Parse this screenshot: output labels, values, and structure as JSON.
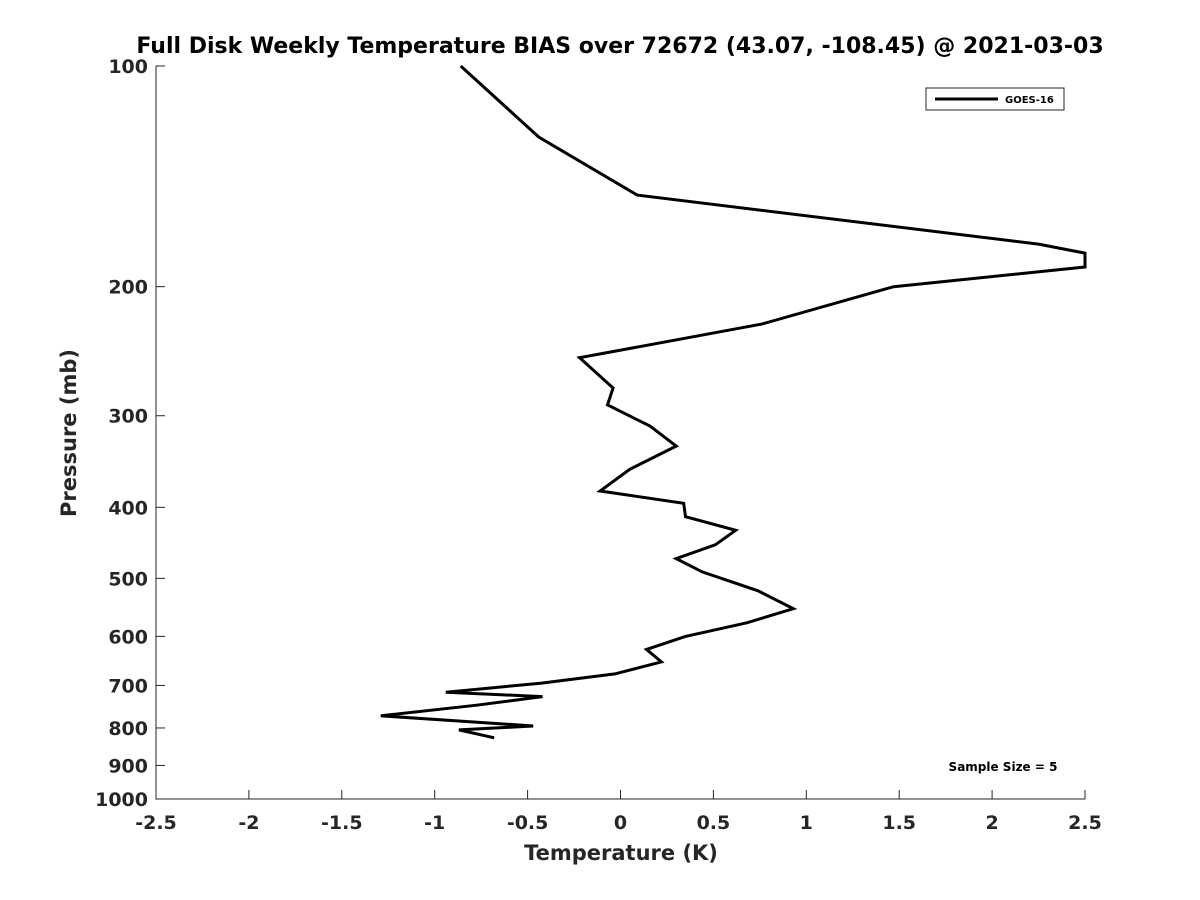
{
  "chart_data": {
    "type": "line",
    "title": "Full Disk Weekly Temperature BIAS over 72672 (43.07, -108.45) @ 2021-03-03",
    "xlabel": "Temperature (K)",
    "ylabel": "Pressure (mb)",
    "xlim": [
      -2.5,
      2.5
    ],
    "ylim": [
      1000,
      100
    ],
    "y_scale": "log",
    "y_reversed": true,
    "grid": false,
    "legend_position": "top-right",
    "x_ticks": [
      -2.5,
      -2,
      -1.5,
      -1,
      -0.5,
      0,
      0.5,
      1,
      1.5,
      2,
      2.5
    ],
    "x_tick_labels": [
      "-2.5",
      "-2",
      "-1.5",
      "-1",
      "-0.5",
      "0",
      "0.5",
      "1",
      "1.5",
      "2",
      "2.5"
    ],
    "y_ticks": [
      100,
      200,
      300,
      400,
      500,
      600,
      700,
      800,
      900,
      1000
    ],
    "y_tick_labels": [
      "100",
      "200",
      "300",
      "400",
      "500",
      "600",
      "700",
      "800",
      "900",
      "1000"
    ],
    "series": [
      {
        "name": "GOES-16",
        "color": "#000000",
        "points": [
          [
            -0.86,
            100
          ],
          [
            -0.44,
            125
          ],
          [
            0.09,
            150
          ],
          [
            2.25,
            175
          ],
          [
            2.5,
            180
          ],
          [
            2.5,
            188
          ],
          [
            1.47,
            200
          ],
          [
            0.76,
            225
          ],
          [
            -0.22,
            250
          ],
          [
            -0.04,
            275
          ],
          [
            -0.07,
            290
          ],
          [
            0.16,
            310
          ],
          [
            0.3,
            330
          ],
          [
            0.05,
            355
          ],
          [
            -0.11,
            380
          ],
          [
            0.34,
            395
          ],
          [
            0.35,
            412
          ],
          [
            0.62,
            430
          ],
          [
            0.51,
            450
          ],
          [
            0.3,
            470
          ],
          [
            0.44,
            490
          ],
          [
            0.74,
            520
          ],
          [
            0.93,
            550
          ],
          [
            0.68,
            575
          ],
          [
            0.35,
            600
          ],
          [
            0.14,
            625
          ],
          [
            0.22,
            650
          ],
          [
            -0.03,
            675
          ],
          [
            -0.43,
            695
          ],
          [
            -0.94,
            715
          ],
          [
            -0.42,
            725
          ],
          [
            -0.78,
            745
          ],
          [
            -1.29,
            770
          ],
          [
            -0.47,
            795
          ],
          [
            -0.87,
            805
          ],
          [
            -0.68,
            825
          ]
        ]
      }
    ],
    "annotations": [
      "Sample Size = 5"
    ]
  }
}
